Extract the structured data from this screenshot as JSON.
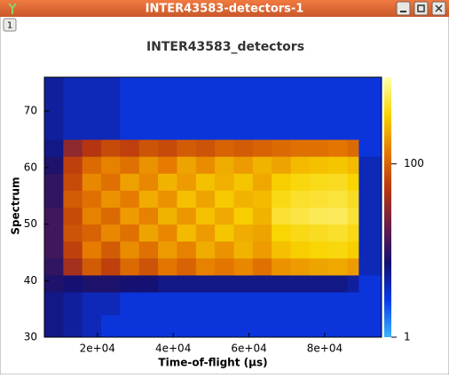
{
  "window": {
    "title": "INTER43583-detectors-1",
    "tab": "1"
  },
  "chart_data": {
    "type": "heatmap",
    "title": "INTER43583_detectors",
    "xlabel": "Time-of-flight (μs)",
    "ylabel": "Spectrum",
    "xlim": [
      6000,
      95000
    ],
    "ylim": [
      30,
      76
    ],
    "xticks": [
      {
        "value": 20000,
        "label": "2e+04"
      },
      {
        "value": 40000,
        "label": "4e+04"
      },
      {
        "value": 60000,
        "label": "6e+04"
      },
      {
        "value": 80000,
        "label": "8e+04"
      }
    ],
    "yticks": [
      30,
      40,
      50,
      60,
      70
    ],
    "x_edges": [
      6000,
      11000,
      16000,
      21000,
      26000,
      31000,
      36000,
      41000,
      46000,
      51000,
      56000,
      61000,
      66000,
      71000,
      76000,
      81000,
      86000,
      89000,
      95000
    ],
    "y_edges": [
      30,
      34,
      38,
      41,
      44,
      47,
      50,
      53,
      56,
      59,
      62,
      65,
      70,
      76
    ],
    "z": [
      [
        6,
        5,
        4,
        3,
        3,
        3,
        3,
        3,
        3,
        3,
        3,
        3,
        3,
        3,
        3,
        3,
        3,
        3
      ],
      [
        6,
        5,
        4,
        4,
        3,
        3,
        3,
        3,
        3,
        3,
        3,
        3,
        3,
        3,
        3,
        3,
        3,
        3
      ],
      [
        8,
        7,
        8,
        8,
        7,
        7,
        6,
        6,
        6,
        6,
        6,
        6,
        6,
        6,
        6,
        6,
        5,
        3
      ],
      [
        10,
        40,
        90,
        60,
        110,
        80,
        130,
        100,
        150,
        130,
        160,
        120,
        180,
        200,
        220,
        230,
        200,
        4
      ],
      [
        12,
        60,
        140,
        90,
        170,
        120,
        200,
        150,
        240,
        180,
        260,
        200,
        300,
        350,
        380,
        400,
        350,
        4
      ],
      [
        12,
        80,
        100,
        160,
        120,
        220,
        160,
        280,
        200,
        320,
        240,
        220,
        380,
        420,
        450,
        480,
        420,
        4
      ],
      [
        12,
        70,
        150,
        110,
        200,
        150,
        260,
        190,
        300,
        230,
        350,
        260,
        500,
        550,
        600,
        620,
        500,
        4
      ],
      [
        10,
        90,
        120,
        180,
        140,
        240,
        180,
        300,
        220,
        330,
        260,
        280,
        420,
        480,
        500,
        520,
        450,
        4
      ],
      [
        10,
        70,
        160,
        120,
        210,
        160,
        260,
        200,
        300,
        250,
        320,
        230,
        350,
        400,
        430,
        450,
        380,
        4
      ],
      [
        8,
        60,
        110,
        150,
        120,
        180,
        140,
        220,
        170,
        240,
        200,
        260,
        220,
        280,
        300,
        320,
        280,
        4
      ],
      [
        6,
        30,
        50,
        70,
        60,
        80,
        70,
        90,
        80,
        100,
        90,
        100,
        110,
        120,
        120,
        130,
        110,
        3
      ],
      [
        5,
        4,
        4,
        4,
        3,
        3,
        3,
        3,
        3,
        3,
        3,
        3,
        3,
        3,
        3,
        3,
        3,
        3
      ],
      [
        5,
        4,
        4,
        4,
        3,
        3,
        3,
        3,
        3,
        3,
        3,
        3,
        3,
        3,
        3,
        3,
        3,
        3
      ]
    ],
    "colorbar": {
      "log": true,
      "lim": [
        1,
        1000
      ],
      "ticks": [
        1,
        100
      ]
    },
    "colormap": [
      "#3cb4ff",
      "#0a3ae8",
      "#141070",
      "#6a1e4a",
      "#b8360e",
      "#e67a00",
      "#f8d400",
      "#ffffb0"
    ]
  }
}
